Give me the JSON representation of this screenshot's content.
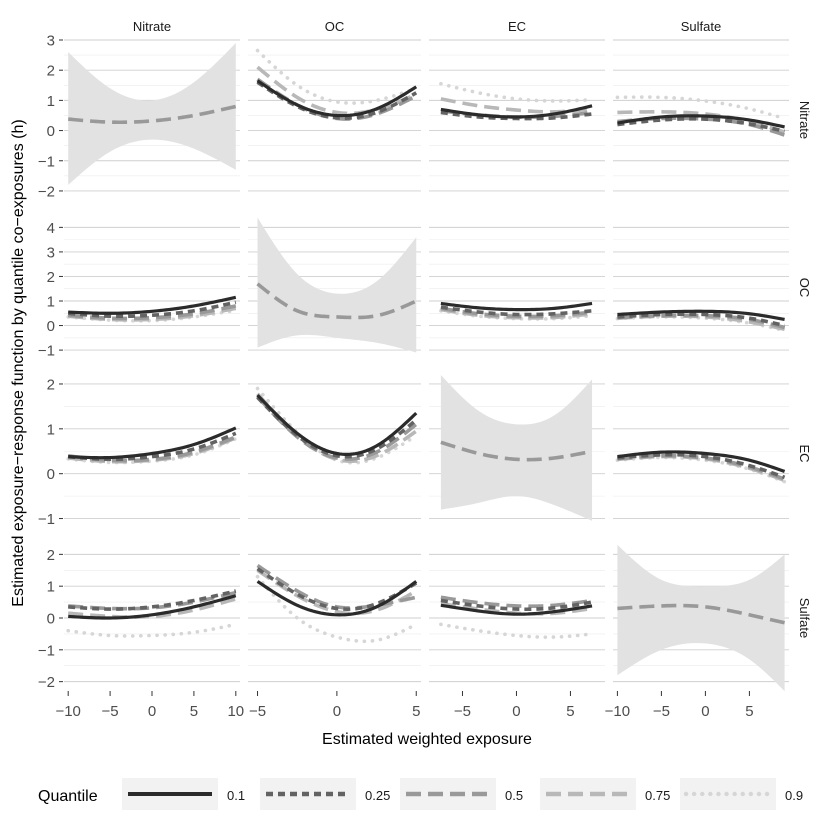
{
  "chart_data": {
    "type": "line",
    "layout": "faceted grid (rows x columns)",
    "xlabel": "Estimated weighted exposure",
    "ylabel": "Estimated exposure−response function by quantile co−exposures (h)",
    "columns": [
      {
        "name": "Nitrate",
        "xlim": [
          -10.5,
          10.5
        ],
        "ticks": [
          -10,
          -5,
          0,
          5,
          10
        ],
        "tick_labels": [
          "−10",
          "−5",
          "0",
          "5",
          "10"
        ]
      },
      {
        "name": "OC",
        "xlim": [
          -5.6,
          5.3
        ],
        "ticks": [
          -5,
          0,
          5
        ],
        "tick_labels": [
          "−5",
          "0",
          "5"
        ]
      },
      {
        "name": "EC",
        "xlim": [
          -8.1,
          8.2
        ],
        "ticks": [
          -5,
          0,
          5
        ],
        "tick_labels": [
          "−5",
          "0",
          "5"
        ]
      },
      {
        "name": "Sulfate",
        "xlim": [
          -10.5,
          9.5
        ],
        "ticks": [
          -10,
          -5,
          0,
          5
        ],
        "tick_labels": [
          "−10",
          "−5",
          "0",
          "5"
        ]
      }
    ],
    "rows": [
      {
        "name": "Nitrate",
        "ylim": [
          -2.3,
          3.0
        ],
        "ticks": [
          -2,
          -1,
          0,
          1,
          2,
          3
        ],
        "tick_labels": [
          "−2",
          "−1",
          "0",
          "1",
          "2",
          "3"
        ]
      },
      {
        "name": "OC",
        "ylim": [
          -1.2,
          4.3
        ],
        "ticks": [
          -1,
          0,
          1,
          2,
          3,
          4
        ],
        "tick_labels": [
          "−1",
          "0",
          "1",
          "2",
          "3",
          "4"
        ]
      },
      {
        "name": "EC",
        "ylim": [
          -1.3,
          2.2
        ],
        "ticks": [
          -1,
          0,
          1,
          2
        ],
        "tick_labels": [
          "−1",
          "0",
          "1",
          "2"
        ]
      },
      {
        "name": "Sulfate",
        "ylim": [
          -2.2,
          2.2
        ],
        "ticks": [
          -2,
          -1,
          0,
          1,
          2
        ],
        "tick_labels": [
          "−2",
          "−1",
          "0",
          "1",
          "2"
        ]
      }
    ],
    "legend": {
      "title": "Quantile",
      "position": "bottom",
      "entries": [
        {
          "label": "0.1",
          "color": "#2b2b2b",
          "style": "solid"
        },
        {
          "label": "0.25",
          "color": "#636363",
          "style": "dashed"
        },
        {
          "label": "0.5",
          "color": "#999999",
          "style": "longdash"
        },
        {
          "label": "0.75",
          "color": "#b8b8b8",
          "style": "longdash"
        },
        {
          "label": "0.9",
          "color": "#d6d6d6",
          "style": "dotted"
        }
      ]
    },
    "panels": [
      {
        "row": "Nitrate",
        "col": "Nitrate",
        "diagonal": true,
        "x": [
          -10,
          -5,
          0,
          5,
          10
        ],
        "fit": [
          0.38,
          0.28,
          0.32,
          0.5,
          0.8
        ],
        "lower": [
          -1.8,
          -0.7,
          -0.3,
          -0.6,
          -1.3
        ],
        "upper": [
          2.6,
          1.4,
          1.0,
          1.6,
          2.9
        ]
      },
      {
        "row": "Nitrate",
        "col": "OC",
        "x": [
          -5,
          -2.5,
          0,
          2.5,
          5
        ],
        "series": [
          {
            "quantile": "0.1",
            "y": [
              1.65,
              0.85,
              0.5,
              0.72,
              1.45
            ]
          },
          {
            "quantile": "0.25",
            "y": [
              1.6,
              0.8,
              0.42,
              0.6,
              1.25
            ]
          },
          {
            "quantile": "0.5",
            "y": [
              1.7,
              0.85,
              0.4,
              0.55,
              1.15
            ]
          },
          {
            "quantile": "0.75",
            "y": [
              2.1,
              1.1,
              0.6,
              0.7,
              1.2
            ]
          },
          {
            "quantile": "0.9",
            "y": [
              2.65,
              1.5,
              0.95,
              1.0,
              1.4
            ]
          }
        ]
      },
      {
        "row": "Nitrate",
        "col": "EC",
        "x": [
          -7,
          -3.5,
          0,
          3.5,
          7
        ],
        "series": [
          {
            "quantile": "0.1",
            "y": [
              0.7,
              0.52,
              0.45,
              0.55,
              0.82
            ]
          },
          {
            "quantile": "0.25",
            "y": [
              0.6,
              0.45,
              0.4,
              0.42,
              0.55
            ]
          },
          {
            "quantile": "0.5",
            "y": [
              0.65,
              0.52,
              0.45,
              0.47,
              0.6
            ]
          },
          {
            "quantile": "0.75",
            "y": [
              1.05,
              0.82,
              0.68,
              0.62,
              0.72
            ]
          },
          {
            "quantile": "0.9",
            "y": [
              1.55,
              1.25,
              1.05,
              0.98,
              1.02
            ]
          }
        ]
      },
      {
        "row": "Nitrate",
        "col": "Sulfate",
        "x": [
          -10,
          -5,
          0,
          5,
          9
        ],
        "series": [
          {
            "quantile": "0.1",
            "y": [
              0.25,
              0.45,
              0.48,
              0.35,
              0.12
            ]
          },
          {
            "quantile": "0.25",
            "y": [
              0.2,
              0.35,
              0.38,
              0.22,
              -0.02
            ]
          },
          {
            "quantile": "0.5",
            "y": [
              0.3,
              0.4,
              0.38,
              0.2,
              -0.15
            ]
          },
          {
            "quantile": "0.75",
            "y": [
              0.6,
              0.62,
              0.55,
              0.3,
              -0.05
            ]
          },
          {
            "quantile": "0.9",
            "y": [
              1.1,
              1.1,
              0.98,
              0.72,
              0.4
            ]
          }
        ]
      },
      {
        "row": "OC",
        "col": "Nitrate",
        "x": [
          -10,
          -5,
          0,
          5,
          10
        ],
        "series": [
          {
            "quantile": "0.1",
            "y": [
              0.55,
              0.5,
              0.58,
              0.8,
              1.15
            ]
          },
          {
            "quantile": "0.25",
            "y": [
              0.5,
              0.38,
              0.42,
              0.6,
              0.95
            ]
          },
          {
            "quantile": "0.5",
            "y": [
              0.42,
              0.3,
              0.32,
              0.48,
              0.8
            ]
          },
          {
            "quantile": "0.75",
            "y": [
              0.38,
              0.25,
              0.25,
              0.4,
              0.7
            ]
          },
          {
            "quantile": "0.9",
            "y": [
              0.35,
              0.22,
              0.2,
              0.35,
              0.62
            ]
          }
        ]
      },
      {
        "row": "OC",
        "col": "OC",
        "diagonal": true,
        "x": [
          -5,
          -2.5,
          0,
          2.5,
          5
        ],
        "fit": [
          1.7,
          0.6,
          0.35,
          0.4,
          1.0
        ],
        "lower": [
          -0.9,
          -0.4,
          -0.5,
          -0.7,
          -1.1
        ],
        "upper": [
          4.4,
          2.1,
          1.3,
          1.8,
          3.6
        ]
      },
      {
        "row": "OC",
        "col": "EC",
        "x": [
          -7,
          -3.5,
          0,
          3.5,
          7
        ],
        "series": [
          {
            "quantile": "0.1",
            "y": [
              0.9,
              0.72,
              0.65,
              0.7,
              0.9
            ]
          },
          {
            "quantile": "0.25",
            "y": [
              0.75,
              0.55,
              0.45,
              0.48,
              0.6
            ]
          },
          {
            "quantile": "0.5",
            "y": [
              0.7,
              0.48,
              0.38,
              0.4,
              0.55
            ]
          },
          {
            "quantile": "0.75",
            "y": [
              0.65,
              0.42,
              0.32,
              0.33,
              0.48
            ]
          },
          {
            "quantile": "0.9",
            "y": [
              0.6,
              0.38,
              0.28,
              0.28,
              0.4
            ]
          }
        ]
      },
      {
        "row": "OC",
        "col": "Sulfate",
        "x": [
          -10,
          -5,
          0,
          5,
          9
        ],
        "series": [
          {
            "quantile": "0.1",
            "y": [
              0.45,
              0.55,
              0.58,
              0.48,
              0.25
            ]
          },
          {
            "quantile": "0.25",
            "y": [
              0.35,
              0.45,
              0.45,
              0.3,
              0.0
            ]
          },
          {
            "quantile": "0.5",
            "y": [
              0.32,
              0.4,
              0.4,
              0.25,
              -0.08
            ]
          },
          {
            "quantile": "0.75",
            "y": [
              0.3,
              0.38,
              0.35,
              0.15,
              -0.15
            ]
          },
          {
            "quantile": "0.9",
            "y": [
              0.28,
              0.35,
              0.3,
              0.1,
              -0.2
            ]
          }
        ]
      },
      {
        "row": "EC",
        "col": "Nitrate",
        "x": [
          -10,
          -5,
          0,
          5,
          10
        ],
        "series": [
          {
            "quantile": "0.1",
            "y": [
              0.38,
              0.36,
              0.45,
              0.65,
              1.02
            ]
          },
          {
            "quantile": "0.25",
            "y": [
              0.38,
              0.32,
              0.38,
              0.55,
              0.9
            ]
          },
          {
            "quantile": "0.5",
            "y": [
              0.4,
              0.3,
              0.32,
              0.48,
              0.82
            ]
          },
          {
            "quantile": "0.75",
            "y": [
              0.35,
              0.27,
              0.3,
              0.45,
              0.8
            ]
          },
          {
            "quantile": "0.9",
            "y": [
              0.33,
              0.25,
              0.28,
              0.42,
              0.78
            ]
          }
        ]
      },
      {
        "row": "EC",
        "col": "OC",
        "x": [
          -5,
          -2.5,
          0,
          2.5,
          5
        ],
        "series": [
          {
            "quantile": "0.1",
            "y": [
              1.75,
              0.9,
              0.45,
              0.62,
              1.35
            ]
          },
          {
            "quantile": "0.25",
            "y": [
              1.7,
              0.85,
              0.4,
              0.55,
              1.2
            ]
          },
          {
            "quantile": "0.5",
            "y": [
              1.72,
              0.82,
              0.35,
              0.48,
              1.1
            ]
          },
          {
            "quantile": "0.75",
            "y": [
              1.78,
              0.85,
              0.32,
              0.4,
              0.95
            ]
          },
          {
            "quantile": "0.9",
            "y": [
              1.9,
              0.92,
              0.3,
              0.35,
              0.85
            ]
          }
        ]
      },
      {
        "row": "EC",
        "col": "EC",
        "diagonal": true,
        "x": [
          -7,
          -3.5,
          0,
          3.5,
          7
        ],
        "fit": [
          0.7,
          0.45,
          0.32,
          0.35,
          0.5
        ],
        "lower": [
          -0.8,
          -0.65,
          -0.5,
          -0.7,
          -1.05
        ],
        "upper": [
          2.2,
          1.4,
          1.1,
          1.3,
          2.1
        ]
      },
      {
        "row": "EC",
        "col": "Sulfate",
        "x": [
          -10,
          -5,
          0,
          5,
          9
        ],
        "series": [
          {
            "quantile": "0.1",
            "y": [
              0.38,
              0.48,
              0.45,
              0.3,
              0.05
            ]
          },
          {
            "quantile": "0.25",
            "y": [
              0.35,
              0.42,
              0.38,
              0.18,
              -0.08
            ]
          },
          {
            "quantile": "0.5",
            "y": [
              0.33,
              0.4,
              0.35,
              0.15,
              -0.12
            ]
          },
          {
            "quantile": "0.75",
            "y": [
              0.32,
              0.38,
              0.33,
              0.12,
              -0.15
            ]
          },
          {
            "quantile": "0.9",
            "y": [
              0.3,
              0.36,
              0.3,
              0.1,
              -0.18
            ]
          }
        ]
      },
      {
        "row": "Sulfate",
        "col": "Nitrate",
        "x": [
          -10,
          -5,
          0,
          5,
          10
        ],
        "series": [
          {
            "quantile": "0.1",
            "y": [
              0.05,
              0.0,
              0.1,
              0.35,
              0.7
            ]
          },
          {
            "quantile": "0.25",
            "y": [
              0.35,
              0.28,
              0.35,
              0.55,
              0.85
            ]
          },
          {
            "quantile": "0.5",
            "y": [
              0.38,
              0.3,
              0.32,
              0.5,
              0.8
            ]
          },
          {
            "quantile": "0.75",
            "y": [
              0.15,
              0.05,
              0.05,
              0.25,
              0.6
            ]
          },
          {
            "quantile": "0.9",
            "y": [
              -0.4,
              -0.55,
              -0.55,
              -0.45,
              -0.2
            ]
          }
        ]
      },
      {
        "row": "Sulfate",
        "col": "OC",
        "x": [
          -5,
          -2.5,
          0,
          2.5,
          5
        ],
        "series": [
          {
            "quantile": "0.1",
            "y": [
              1.15,
              0.4,
              0.1,
              0.35,
              1.15
            ]
          },
          {
            "quantile": "0.25",
            "y": [
              1.55,
              0.75,
              0.3,
              0.45,
              1.1
            ]
          },
          {
            "quantile": "0.5",
            "y": [
              1.65,
              0.85,
              0.35,
              0.4,
              0.65
            ]
          },
          {
            "quantile": "0.75",
            "y": [
              1.5,
              0.7,
              0.2,
              0.25,
              0.85
            ]
          },
          {
            "quantile": "0.9",
            "y": [
              1.3,
              0.0,
              -0.6,
              -0.7,
              -0.2
            ]
          }
        ]
      },
      {
        "row": "Sulfate",
        "col": "EC",
        "x": [
          -7,
          -3.5,
          0,
          3.5,
          7
        ],
        "series": [
          {
            "quantile": "0.1",
            "y": [
              0.4,
              0.22,
              0.12,
              0.2,
              0.38
            ]
          },
          {
            "quantile": "0.25",
            "y": [
              0.55,
              0.38,
              0.28,
              0.32,
              0.5
            ]
          },
          {
            "quantile": "0.5",
            "y": [
              0.65,
              0.48,
              0.38,
              0.4,
              0.55
            ]
          },
          {
            "quantile": "0.75",
            "y": [
              0.45,
              0.28,
              0.15,
              0.15,
              0.3
            ]
          },
          {
            "quantile": "0.9",
            "y": [
              -0.2,
              -0.4,
              -0.55,
              -0.6,
              -0.5
            ]
          }
        ]
      },
      {
        "row": "Sulfate",
        "col": "Sulfate",
        "diagonal": true,
        "x": [
          -10,
          -5,
          0,
          5,
          9
        ],
        "fit": [
          0.3,
          0.38,
          0.35,
          0.1,
          -0.15
        ],
        "lower": [
          -1.8,
          -1.0,
          -0.8,
          -1.3,
          -2.3
        ],
        "upper": [
          2.3,
          1.2,
          1.0,
          1.2,
          2.0
        ]
      }
    ]
  }
}
